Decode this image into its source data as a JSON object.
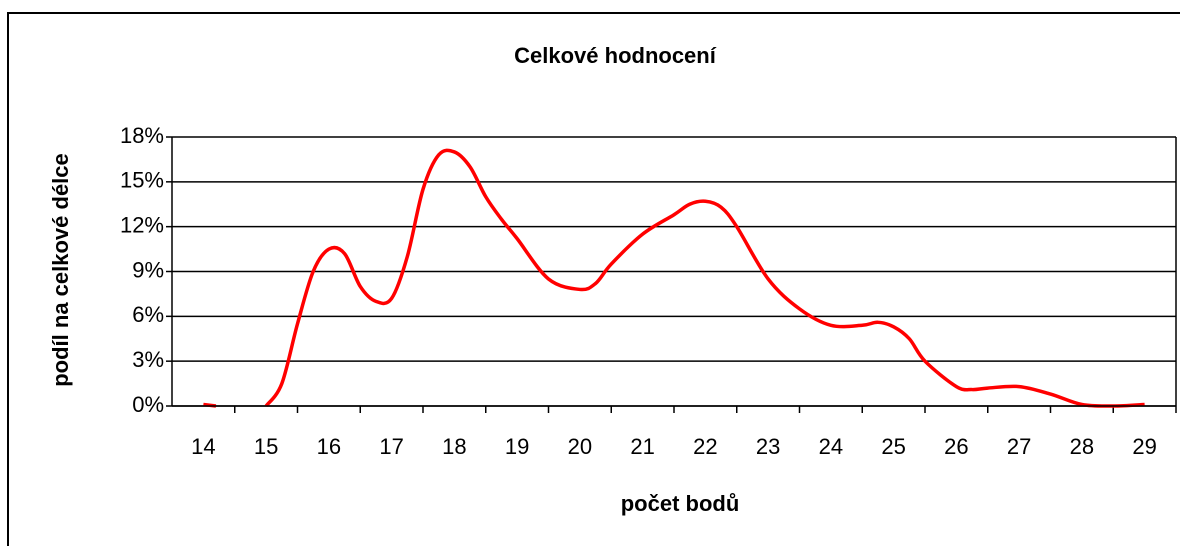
{
  "chart_data": {
    "type": "line",
    "title": "Celkové hodnocení",
    "xlabel": "počet bodů",
    "ylabel": "podíl na celkové délce",
    "x": [
      14,
      14.2,
      14.6,
      15,
      15.25,
      15.5,
      15.75,
      16,
      16.25,
      16.5,
      16.75,
      17,
      17.25,
      17.5,
      17.75,
      18,
      18.25,
      18.5,
      18.75,
      19,
      19.5,
      20,
      20.25,
      20.5,
      21,
      21.5,
      21.75,
      22,
      22.25,
      22.5,
      23,
      23.5,
      24,
      24.5,
      24.75,
      25,
      25.25,
      25.5,
      26,
      26.25,
      26.5,
      27,
      27.5,
      28,
      28.5,
      29
    ],
    "series": [
      {
        "name": "Celkové hodnocení",
        "color": "#ff0000",
        "values": [
          0.1,
          0,
          null,
          0,
          1.5,
          5.5,
          9,
          10.5,
          10.2,
          8,
          7,
          7.2,
          10,
          14.5,
          16.8,
          17,
          16,
          14,
          12.5,
          11.2,
          8.5,
          7.8,
          8.2,
          9.5,
          11.5,
          12.8,
          13.5,
          13.7,
          13.3,
          12,
          8.5,
          6.5,
          5.4,
          5.4,
          5.6,
          5.3,
          4.5,
          3,
          1.3,
          1.1,
          1.2,
          1.3,
          0.8,
          0.1,
          0,
          0.1
        ]
      }
    ],
    "xlim": [
      13.5,
      29.5
    ],
    "xticks": [
      14,
      15,
      16,
      17,
      18,
      19,
      20,
      21,
      22,
      23,
      24,
      25,
      26,
      27,
      28,
      29
    ],
    "ylim": [
      0,
      18
    ],
    "yticks": [
      {
        "value": 0,
        "label": "0%"
      },
      {
        "value": 3,
        "label": "3%"
      },
      {
        "value": 6,
        "label": "6%"
      },
      {
        "value": 9,
        "label": "9%"
      },
      {
        "value": 12,
        "label": "12%"
      },
      {
        "value": 15,
        "label": "15%"
      },
      {
        "value": 18,
        "label": "18%"
      }
    ],
    "grid": true
  }
}
